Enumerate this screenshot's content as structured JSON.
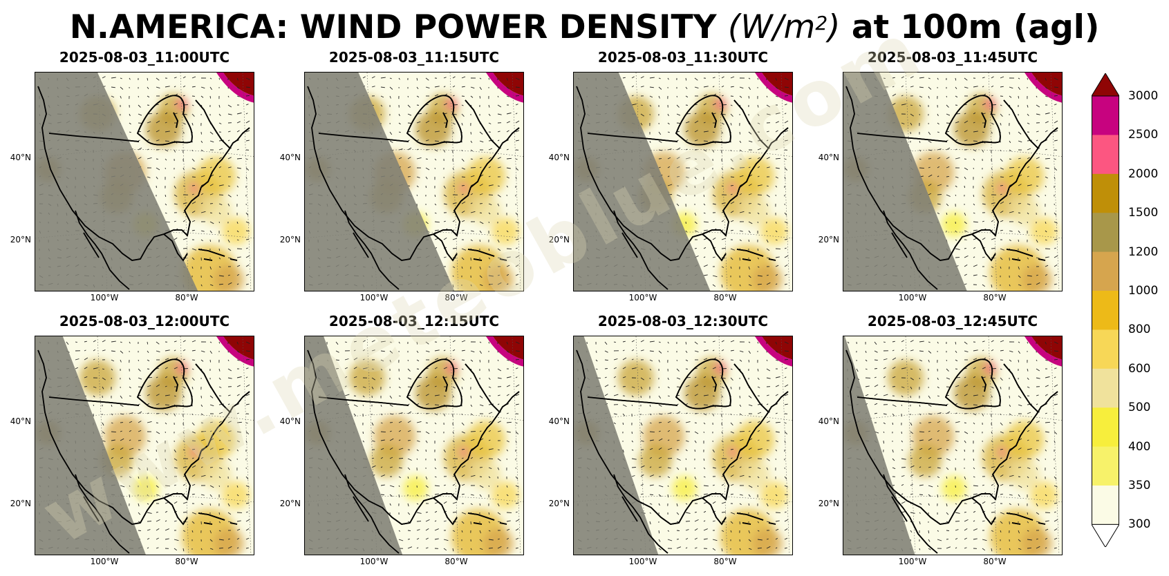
{
  "title": {
    "prefix": "N.AMERICA: WIND POWER DENSITY ",
    "units_base": "(W/m",
    "units_exp": "2",
    "units_close": ")",
    "suffix": " at 100m (agl)"
  },
  "panels": [
    {
      "time": "2025-08-03_11:00UTC",
      "terminator_frac": 0.0
    },
    {
      "time": "2025-08-03_11:15UTC",
      "terminator_frac": 0.143
    },
    {
      "time": "2025-08-03_11:30UTC",
      "terminator_frac": 0.286
    },
    {
      "time": "2025-08-03_11:45UTC",
      "terminator_frac": 0.429
    },
    {
      "time": "2025-08-03_12:00UTC",
      "terminator_frac": 0.571
    },
    {
      "time": "2025-08-03_12:15UTC",
      "terminator_frac": 0.714
    },
    {
      "time": "2025-08-03_12:30UTC",
      "terminator_frac": 0.857
    },
    {
      "time": "2025-08-03_12:45UTC",
      "terminator_frac": 1.0
    }
  ],
  "axes": {
    "lat_labels": [
      "40°N",
      "20°N"
    ],
    "lon_labels": [
      "100°W",
      "80°W"
    ]
  },
  "colorbar": {
    "ticks": [
      "3000",
      "2500",
      "2000",
      "1500",
      "1200",
      "1000",
      "800",
      "600",
      "500",
      "400",
      "350",
      "300"
    ],
    "colors": [
      "#fbfbe6",
      "#f7f26a",
      "#f7ee3c",
      "#f0e29c",
      "#f7d757",
      "#edba18",
      "#d6a54e",
      "#a8974a",
      "#bf8f08",
      "#fc5681",
      "#c7037f"
    ],
    "over_color": "#8f0505",
    "under_color": "#ffffff"
  },
  "style": {
    "ocean": "#fbfbe6",
    "night": "#7f7f75",
    "land_line": "#000000"
  }
}
